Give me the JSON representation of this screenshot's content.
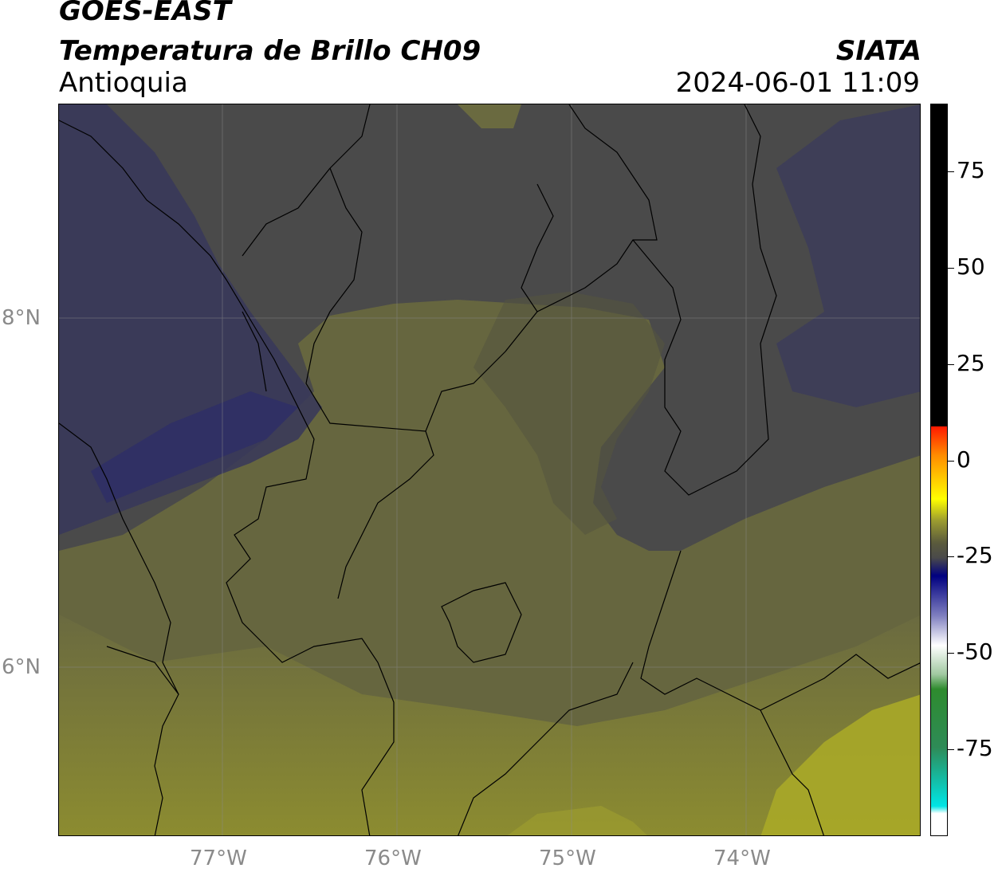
{
  "header": {
    "satellite": "GOES-EAST",
    "product": "Temperatura de Brillo CH09",
    "region": "Antioquia",
    "agency": "SIATA",
    "datetime": "2024-06-01 11:09"
  },
  "map": {
    "lat_labels": [
      "8°N",
      "6°N"
    ],
    "lon_labels": [
      "77°W",
      "76°W",
      "75°W",
      "74°W"
    ]
  },
  "colorbar": {
    "ticks": [
      "75",
      "50",
      "25",
      "0",
      "-25",
      "-50",
      "-75"
    ],
    "colors": {
      "top_black": "#000000",
      "red": "#ff1a00",
      "orange": "#ff8c00",
      "yellow": "#ffff00",
      "olive": "#7a7a3c",
      "gray": "#4a4a4a",
      "navy": "#000080",
      "white": "#ffffff",
      "green": "#2e8b2e",
      "cyan": "#00e5e5"
    }
  }
}
